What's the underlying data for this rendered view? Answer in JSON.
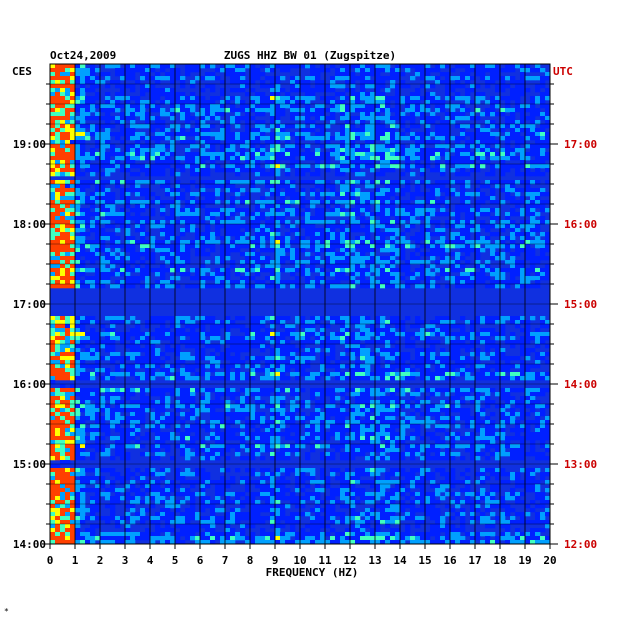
{
  "chart_data": {
    "type": "heatmap",
    "title_date": "Oct24,2009",
    "title": "ZUGS HHZ BW 01 (Zugspitze)",
    "xlabel": "FREQUENCY (HZ)",
    "xlim": [
      0,
      20
    ],
    "x_ticks": [
      "0",
      "1",
      "2",
      "3",
      "4",
      "5",
      "6",
      "7",
      "8",
      "9",
      "10",
      "11",
      "12",
      "13",
      "14",
      "15",
      "16",
      "17",
      "18",
      "19",
      "20"
    ],
    "left_axis_label": "CES",
    "right_axis_label": "UTC",
    "left_ticks": [
      "19:00",
      "18:00",
      "17:00",
      "16:00",
      "15:00",
      "14:00"
    ],
    "right_ticks": [
      "17:00",
      "16:00",
      "15:00",
      "14:00",
      "13:00",
      "12:00"
    ],
    "time_range_local": [
      "14:00",
      "19:45"
    ],
    "colormap": [
      "#0000a0",
      "#0020ff",
      "#00a0ff",
      "#40ffc0",
      "#ffff00",
      "#ff4000"
    ],
    "grid": true,
    "quiet_bands_local": [
      "17:12-16:50",
      "18:35",
      "16:00",
      "15:00"
    ],
    "strong_bands_hz": [
      0.2,
      1.0
    ]
  },
  "colors": {
    "utc_label": "#cc0000",
    "background": "#ffffff",
    "axis": "#000000"
  },
  "footer_mark": "*"
}
